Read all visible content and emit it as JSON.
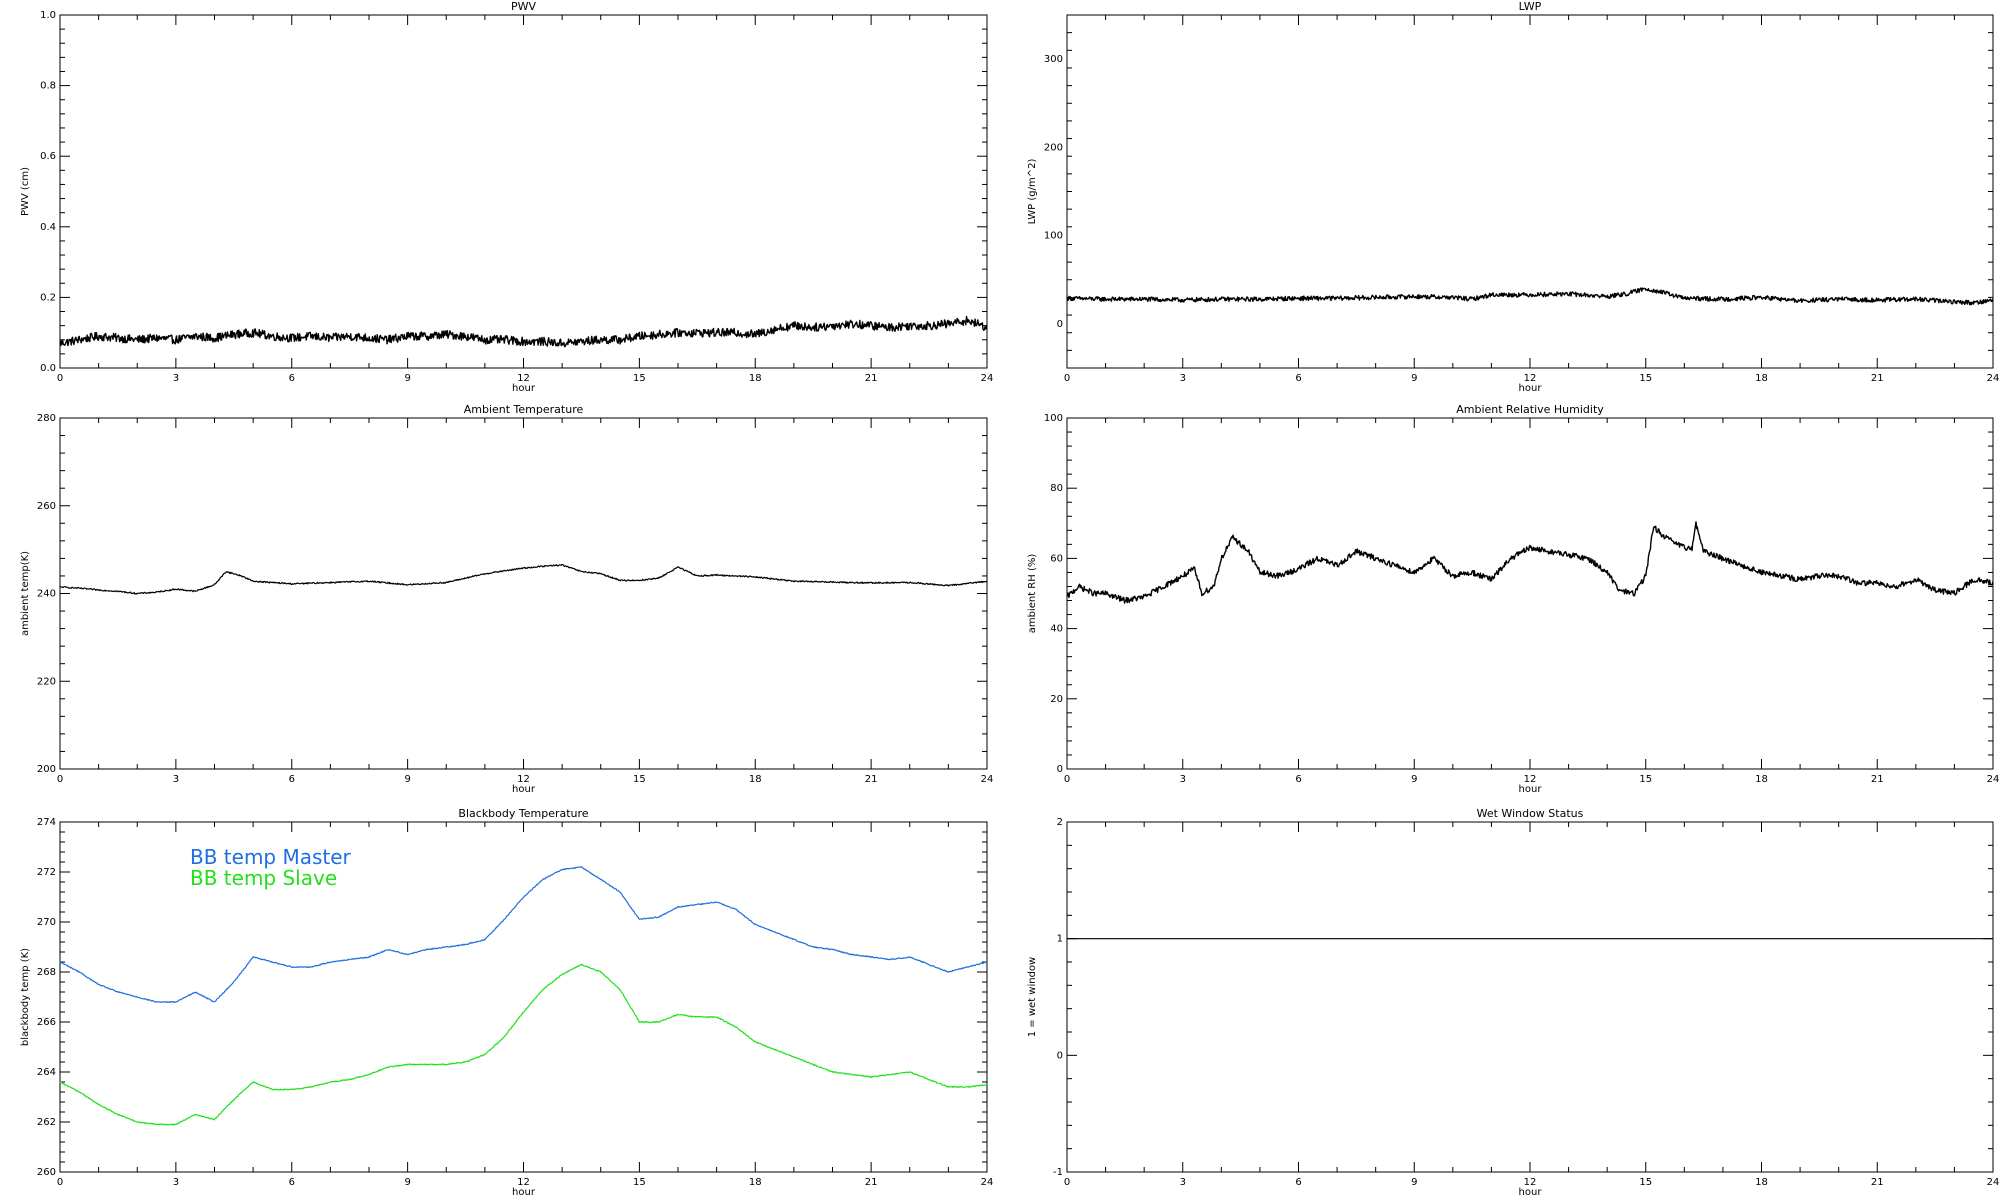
{
  "figure": {
    "panels": [
      "pwv",
      "lwp",
      "ambient_temp",
      "ambient_rh",
      "bb_temp",
      "wet_window"
    ]
  },
  "chart_data": [
    {
      "id": "pwv",
      "type": "line",
      "title": "PWV",
      "xlabel": "hour",
      "ylabel": "PWV (cm)",
      "xlim": [
        0,
        24
      ],
      "ylim": [
        0,
        1.0
      ],
      "xticks": [
        0,
        3,
        6,
        9,
        12,
        15,
        18,
        21,
        24
      ],
      "yticks": [
        0.0,
        0.2,
        0.4,
        0.6,
        0.8,
        1.0
      ],
      "ytick_labels": [
        "0.0",
        "0.2",
        "0.4",
        "0.6",
        "0.8",
        "1.0"
      ],
      "grid": false,
      "series": [
        {
          "color": "#000000",
          "noise": 0.012,
          "x": [
            0,
            0.5,
            1,
            1.5,
            2,
            2.5,
            3,
            3.5,
            4,
            4.5,
            5,
            5.5,
            6,
            6.5,
            7,
            7.5,
            8,
            8.5,
            9,
            9.5,
            10,
            10.5,
            11,
            11.5,
            12,
            12.5,
            13,
            13.5,
            14,
            14.5,
            15,
            15.5,
            16,
            16.5,
            17,
            17.5,
            18,
            18.5,
            19,
            19.5,
            20,
            20.5,
            21,
            21.5,
            22,
            22.5,
            23,
            23.5,
            24
          ],
          "y": [
            0.07,
            0.08,
            0.09,
            0.085,
            0.08,
            0.085,
            0.08,
            0.09,
            0.085,
            0.095,
            0.1,
            0.09,
            0.085,
            0.09,
            0.085,
            0.09,
            0.085,
            0.08,
            0.09,
            0.09,
            0.095,
            0.09,
            0.08,
            0.08,
            0.075,
            0.075,
            0.07,
            0.075,
            0.08,
            0.08,
            0.09,
            0.095,
            0.1,
            0.1,
            0.1,
            0.1,
            0.095,
            0.11,
            0.12,
            0.115,
            0.12,
            0.125,
            0.12,
            0.115,
            0.12,
            0.12,
            0.125,
            0.135,
            0.115
          ]
        }
      ]
    },
    {
      "id": "lwp",
      "type": "line",
      "title": "LWP",
      "xlabel": "hour",
      "ylabel": "LWP (g/m^2)",
      "xlim": [
        0,
        24
      ],
      "ylim": [
        -50,
        350
      ],
      "xticks": [
        0,
        3,
        6,
        9,
        12,
        15,
        18,
        21,
        24
      ],
      "yticks": [
        0,
        100,
        200,
        300
      ],
      "ytick_labels": [
        "0",
        "100",
        "200",
        "300"
      ],
      "grid": false,
      "series": [
        {
          "color": "#000000",
          "noise": 2.5,
          "x": [
            0,
            1,
            2,
            3,
            4,
            5,
            6,
            7,
            8,
            9,
            10,
            10.5,
            11,
            12,
            13,
            14,
            14.5,
            15,
            15.5,
            16,
            17,
            18,
            19,
            20,
            21,
            22,
            23,
            23.5,
            24
          ],
          "y": [
            29,
            28,
            28,
            27,
            28,
            28,
            29,
            29,
            30,
            31,
            30,
            28,
            33,
            33,
            34,
            31,
            34,
            40,
            35,
            29,
            28,
            30,
            26,
            28,
            27,
            28,
            25,
            24,
            27
          ]
        }
      ]
    },
    {
      "id": "ambient_temp",
      "type": "line",
      "title": "Ambient Temperature",
      "xlabel": "hour",
      "ylabel": "ambient temp(K)",
      "xlim": [
        0,
        24
      ],
      "ylim": [
        200,
        280
      ],
      "xticks": [
        0,
        3,
        6,
        9,
        12,
        15,
        18,
        21,
        24
      ],
      "yticks": [
        200,
        220,
        240,
        260,
        280
      ],
      "ytick_labels": [
        "200",
        "220",
        "240",
        "260",
        "280"
      ],
      "grid": false,
      "series": [
        {
          "color": "#000000",
          "noise": 0.15,
          "x": [
            0,
            0.5,
            1,
            1.5,
            2,
            2.5,
            3,
            3.5,
            4,
            4.3,
            4.7,
            5,
            6,
            7,
            8,
            9,
            10,
            11,
            12,
            12.5,
            13,
            13.5,
            14,
            14.5,
            15,
            15.5,
            16,
            16.5,
            17,
            18,
            19,
            20,
            21,
            22,
            23,
            23.5,
            24
          ],
          "y": [
            241.5,
            241.2,
            240.8,
            240.5,
            240.0,
            240.3,
            241.0,
            240.5,
            242.0,
            245.0,
            244.0,
            242.8,
            242.2,
            242.5,
            242.8,
            242.0,
            242.5,
            244.5,
            245.8,
            246.2,
            246.5,
            245.0,
            244.5,
            243.0,
            243.0,
            243.5,
            246.0,
            244.0,
            244.2,
            243.8,
            242.8,
            242.6,
            242.4,
            242.5,
            241.8,
            242.3,
            242.8
          ]
        }
      ]
    },
    {
      "id": "ambient_rh",
      "type": "line",
      "title": "Ambient Relative Humidity",
      "xlabel": "hour",
      "ylabel": "ambient RH (%)",
      "xlim": [
        0,
        24
      ],
      "ylim": [
        0,
        100
      ],
      "xticks": [
        0,
        3,
        6,
        9,
        12,
        15,
        18,
        21,
        24
      ],
      "yticks": [
        0,
        20,
        40,
        60,
        80,
        100
      ],
      "ytick_labels": [
        "0",
        "20",
        "40",
        "60",
        "80",
        "100"
      ],
      "grid": false,
      "series": [
        {
          "color": "#000000",
          "noise": 0.8,
          "x": [
            0,
            0.3,
            0.7,
            1,
            1.5,
            2,
            2.5,
            3,
            3.3,
            3.5,
            3.8,
            4,
            4.3,
            4.7,
            5,
            5.5,
            6,
            6.5,
            7,
            7.5,
            8,
            8.5,
            9,
            9.5,
            10,
            10.5,
            11,
            11.5,
            12,
            12.5,
            13,
            13.5,
            14,
            14.3,
            14.7,
            15,
            15.2,
            15.5,
            16,
            16.2,
            16.3,
            16.5,
            17,
            17.5,
            18,
            18.5,
            19,
            19.5,
            20,
            20.5,
            21,
            21.5,
            22,
            22.5,
            23,
            23.5,
            24
          ],
          "y": [
            49,
            52,
            50,
            50,
            48,
            49,
            52,
            55,
            57,
            50,
            52,
            60,
            66,
            62,
            56,
            55,
            57,
            60,
            58,
            62,
            60,
            58,
            56,
            60,
            55,
            56,
            54,
            60,
            63,
            62,
            61,
            60,
            56,
            51,
            50,
            55,
            69,
            66,
            63,
            63,
            70,
            62,
            60,
            58,
            56,
            55,
            54,
            55,
            55,
            53,
            53,
            52,
            54,
            51,
            50,
            54,
            53
          ]
        }
      ]
    },
    {
      "id": "bb_temp",
      "type": "line",
      "title": "Blackbody Temperature",
      "xlabel": "hour",
      "ylabel": "blackbody temp (K)",
      "xlim": [
        0,
        24
      ],
      "ylim": [
        260,
        274
      ],
      "xticks": [
        0,
        3,
        6,
        9,
        12,
        15,
        18,
        21,
        24
      ],
      "yticks": [
        260,
        262,
        264,
        266,
        268,
        270,
        272,
        274
      ],
      "ytick_labels": [
        "260",
        "262",
        "264",
        "266",
        "268",
        "270",
        "272",
        "274"
      ],
      "grid": false,
      "legend_position": "top-left",
      "series": [
        {
          "name": "BB temp Master",
          "color": "#1f6fe0",
          "noise": 0.02,
          "x": [
            0,
            0.5,
            1,
            1.5,
            2,
            2.5,
            3,
            3.5,
            4,
            4.5,
            5,
            5.5,
            6,
            6.5,
            7,
            7.5,
            8,
            8.5,
            9,
            9.5,
            10,
            10.5,
            11,
            11.5,
            12,
            12.5,
            13,
            13.5,
            14,
            14.5,
            15,
            15.5,
            16,
            16.5,
            17,
            17.5,
            18,
            18.5,
            19,
            19.5,
            20,
            20.5,
            21,
            21.5,
            22,
            22.5,
            23,
            23.5,
            24
          ],
          "y": [
            268.4,
            268.0,
            267.5,
            267.2,
            267.0,
            266.8,
            266.8,
            267.2,
            266.8,
            267.6,
            268.6,
            268.4,
            268.2,
            268.2,
            268.4,
            268.5,
            268.6,
            268.9,
            268.7,
            268.9,
            269.0,
            269.1,
            269.3,
            270.1,
            271.0,
            271.7,
            272.1,
            272.2,
            271.7,
            271.2,
            270.1,
            270.2,
            270.6,
            270.7,
            270.8,
            270.5,
            269.9,
            269.6,
            269.3,
            269.0,
            268.9,
            268.7,
            268.6,
            268.5,
            268.6,
            268.3,
            268.0,
            268.2,
            268.4
          ]
        },
        {
          "name": "BB temp Slave",
          "color": "#22e01a",
          "noise": 0.02,
          "x": [
            0,
            0.5,
            1,
            1.5,
            2,
            2.5,
            3,
            3.5,
            4,
            4.5,
            5,
            5.5,
            6,
            6.5,
            7,
            7.5,
            8,
            8.5,
            9,
            9.5,
            10,
            10.5,
            11,
            11.5,
            12,
            12.5,
            13,
            13.5,
            14,
            14.5,
            15,
            15.5,
            16,
            16.5,
            17,
            17.5,
            18,
            18.5,
            19,
            19.5,
            20,
            20.5,
            21,
            21.5,
            22,
            22.5,
            23,
            23.5,
            24
          ],
          "y": [
            263.6,
            263.2,
            262.7,
            262.3,
            262.0,
            261.9,
            261.9,
            262.3,
            262.1,
            262.9,
            263.6,
            263.3,
            263.3,
            263.4,
            263.6,
            263.7,
            263.9,
            264.2,
            264.3,
            264.3,
            264.3,
            264.4,
            264.7,
            265.4,
            266.4,
            267.3,
            267.9,
            268.3,
            268.0,
            267.3,
            266.0,
            266.0,
            266.3,
            266.2,
            266.2,
            265.8,
            265.2,
            264.9,
            264.6,
            264.3,
            264.0,
            263.9,
            263.8,
            263.9,
            264.0,
            263.7,
            263.4,
            263.4,
            263.5
          ]
        }
      ]
    },
    {
      "id": "wet_window",
      "type": "line",
      "title": "Wet Window Status",
      "xlabel": "hour",
      "ylabel": "1 = wet window",
      "xlim": [
        0,
        24
      ],
      "ylim": [
        -1,
        2
      ],
      "xticks": [
        0,
        3,
        6,
        9,
        12,
        15,
        18,
        21,
        24
      ],
      "yticks": [
        -1,
        0,
        1,
        2
      ],
      "ytick_labels": [
        "-1",
        "0",
        "1",
        "2"
      ],
      "grid": false,
      "series": [
        {
          "color": "#000000",
          "noise": 0,
          "x": [
            0,
            24
          ],
          "y": [
            1,
            1
          ]
        }
      ]
    }
  ]
}
